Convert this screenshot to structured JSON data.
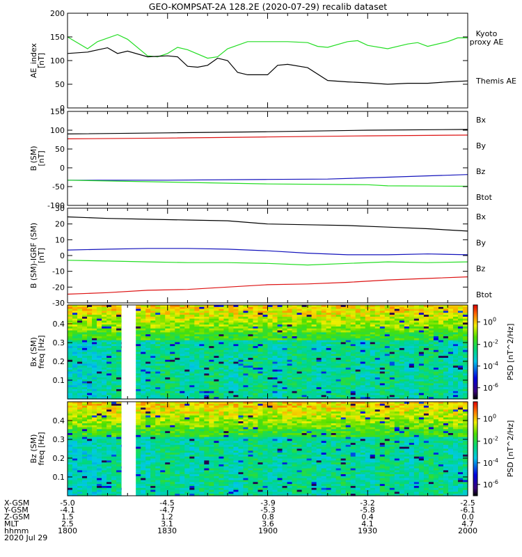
{
  "title": "GEO-KOMPSAT-2A 128.2E (2020-07-29) recalib dataset",
  "colors": {
    "black": "#000000",
    "green": "#22dd22",
    "red": "#dd1111",
    "blue": "#1111bb"
  },
  "chart_data": [
    {
      "type": "line",
      "ylabel_lines": [
        "AE_index",
        "[nT]"
      ],
      "ylim": [
        0,
        200
      ],
      "yticks": [
        0,
        50,
        100,
        150,
        200
      ],
      "x": [
        0,
        0.2,
        0.4,
        0.6,
        0.8,
        1,
        1.2,
        1.4,
        1.6,
        1.8,
        2
      ],
      "series": [
        {
          "name": "Kyoto proxy AE",
          "name_lines": [
            "Kyoto",
            "proxy AE"
          ],
          "color": "#22dd22",
          "x": [
            0,
            0.1,
            0.15,
            0.25,
            0.3,
            0.4,
            0.45,
            0.5,
            0.55,
            0.6,
            0.7,
            0.75,
            0.8,
            0.9,
            1.0,
            1.1,
            1.2,
            1.25,
            1.3,
            1.4,
            1.45,
            1.5,
            1.6,
            1.7,
            1.75,
            1.8,
            1.9,
            1.95,
            2.0
          ],
          "values": [
            150,
            125,
            140,
            155,
            145,
            110,
            108,
            115,
            128,
            123,
            105,
            108,
            125,
            140,
            140,
            140,
            138,
            130,
            128,
            140,
            142,
            132,
            125,
            135,
            138,
            130,
            140,
            148,
            148
          ]
        },
        {
          "name": "Themis AE",
          "name_lines": [
            "Themis AE"
          ],
          "color": "#000000",
          "x": [
            0,
            0.1,
            0.2,
            0.25,
            0.3,
            0.4,
            0.5,
            0.55,
            0.6,
            0.65,
            0.7,
            0.75,
            0.8,
            0.85,
            0.9,
            1.0,
            1.05,
            1.1,
            1.2,
            1.3,
            1.4,
            1.5,
            1.6,
            1.7,
            1.8,
            1.9,
            2.0
          ],
          "values": [
            115,
            118,
            127,
            115,
            120,
            108,
            110,
            108,
            88,
            86,
            90,
            105,
            100,
            75,
            70,
            70,
            90,
            92,
            85,
            58,
            55,
            53,
            50,
            52,
            52,
            55,
            57
          ]
        }
      ]
    },
    {
      "type": "line",
      "ylabel_lines": [
        "B (SM)",
        "[nT]"
      ],
      "ylim": [
        -100,
        150
      ],
      "yticks": [
        -100,
        -50,
        0,
        50,
        100,
        150
      ],
      "legend": [
        {
          "label": "Bx",
          "color": "#1111bb"
        },
        {
          "label": "By",
          "color": "#22dd22"
        },
        {
          "label": "Bz",
          "color": "#dd1111"
        },
        {
          "label": "Btot",
          "color": "#000000"
        }
      ],
      "series": [
        {
          "name": "Bx",
          "color": "#1111bb",
          "x": [
            0,
            0.5,
            1.0,
            1.3,
            1.6,
            2.0
          ],
          "values": [
            -33,
            -33,
            -31,
            -30,
            -25,
            -18
          ]
        },
        {
          "name": "By",
          "color": "#22dd22",
          "x": [
            0,
            0.5,
            1.0,
            1.5,
            1.6,
            2.0
          ],
          "values": [
            -33,
            -38,
            -43,
            -45,
            -48,
            -49
          ]
        },
        {
          "name": "Bz",
          "color": "#dd1111",
          "x": [
            0,
            0.5,
            1.0,
            1.5,
            2.0
          ],
          "values": [
            77,
            79,
            82,
            85,
            87
          ]
        },
        {
          "name": "Btot",
          "color": "#000000",
          "x": [
            0,
            0.5,
            1.0,
            1.5,
            2.0
          ],
          "values": [
            90,
            93,
            96,
            100,
            102
          ]
        }
      ]
    },
    {
      "type": "line",
      "ylabel_lines": [
        "B (SM)-IGRF (SM)",
        "[nT]"
      ],
      "ylim": [
        -30,
        30
      ],
      "yticks": [
        -30,
        -20,
        -10,
        0,
        10,
        20,
        30
      ],
      "legend": [
        {
          "label": "Bx",
          "color": "#1111bb"
        },
        {
          "label": "By",
          "color": "#22dd22"
        },
        {
          "label": "Bz",
          "color": "#dd1111"
        },
        {
          "label": "Btot",
          "color": "#000000"
        }
      ],
      "series": [
        {
          "name": "Btot",
          "color": "#000000",
          "x": [
            0,
            0.2,
            0.4,
            0.6,
            0.8,
            1.0,
            1.2,
            1.4,
            1.6,
            1.8,
            2.0
          ],
          "values": [
            24.5,
            23.5,
            23,
            22.5,
            22,
            20,
            19.5,
            19,
            18,
            17,
            15.5
          ]
        },
        {
          "name": "Bx",
          "color": "#1111bb",
          "x": [
            0,
            0.2,
            0.4,
            0.6,
            0.8,
            1.0,
            1.2,
            1.4,
            1.6,
            1.8,
            2.0
          ],
          "values": [
            3.5,
            4,
            4.5,
            4.5,
            4,
            3,
            1.5,
            0.5,
            0.5,
            1,
            0.5
          ]
        },
        {
          "name": "By",
          "color": "#22dd22",
          "x": [
            0,
            0.2,
            0.4,
            0.6,
            0.8,
            1.0,
            1.2,
            1.4,
            1.6,
            1.8,
            2.0
          ],
          "values": [
            -3,
            -3.5,
            -4,
            -4.5,
            -4.5,
            -5,
            -6,
            -5,
            -4,
            -4.5,
            -4
          ]
        },
        {
          "name": "Bz",
          "color": "#dd1111",
          "x": [
            0,
            0.2,
            0.4,
            0.6,
            0.8,
            1.0,
            1.2,
            1.4,
            1.6,
            1.8,
            2.0
          ],
          "values": [
            -24.5,
            -23.5,
            -22,
            -21.5,
            -20,
            -18.5,
            -18,
            -17,
            -15.5,
            -14.5,
            -13.5
          ]
        }
      ]
    },
    {
      "type": "heatmap",
      "ylabel_lines": [
        "Bx (SM)",
        "freq [Hz]"
      ],
      "ylim": [
        0,
        0.5
      ],
      "yticks": [
        0.1,
        0.2,
        0.3,
        0.4
      ],
      "gap": [
        0.27,
        0.33
      ],
      "colorbar": {
        "label": "PSD [nT^2/Hz]",
        "ticks": [
          "10",
          "10",
          "10",
          "10"
        ],
        "exponents": [
          "0",
          "-2",
          "-4",
          "-6"
        ]
      }
    },
    {
      "type": "heatmap",
      "ylabel_lines": [
        "Bz (SM)",
        "freq [Hz]"
      ],
      "ylim": [
        0,
        0.5
      ],
      "yticks": [
        0.1,
        0.2,
        0.3,
        0.4
      ],
      "gap": [
        0.27,
        0.33
      ],
      "colorbar": {
        "label": "PSD [nT^2/Hz]",
        "ticks": [
          "10",
          "10",
          "10",
          "10"
        ],
        "exponents": [
          "0",
          "-2",
          "-4",
          "-6"
        ]
      }
    }
  ],
  "footer": {
    "rows": [
      {
        "label": "X-GSM",
        "values": [
          "-5.0",
          "-4.5",
          "-3.9",
          "-3.2",
          "-2.5"
        ]
      },
      {
        "label": "Y-GSM",
        "values": [
          "-4.1",
          "-4.7",
          "-5.3",
          "-5.8",
          "-6.1"
        ]
      },
      {
        "label": "Z-GSM",
        "values": [
          "1.5",
          "1.2",
          "0.8",
          "0.4",
          "0.0"
        ]
      },
      {
        "label": "MLT",
        "values": [
          "2.5",
          "3.1",
          "3.6",
          "4.1",
          "4.7"
        ]
      },
      {
        "label": "hhmm",
        "values": [
          "1800",
          "1830",
          "1900",
          "1930",
          "2000"
        ]
      }
    ],
    "date": "2020 Jul 29"
  }
}
